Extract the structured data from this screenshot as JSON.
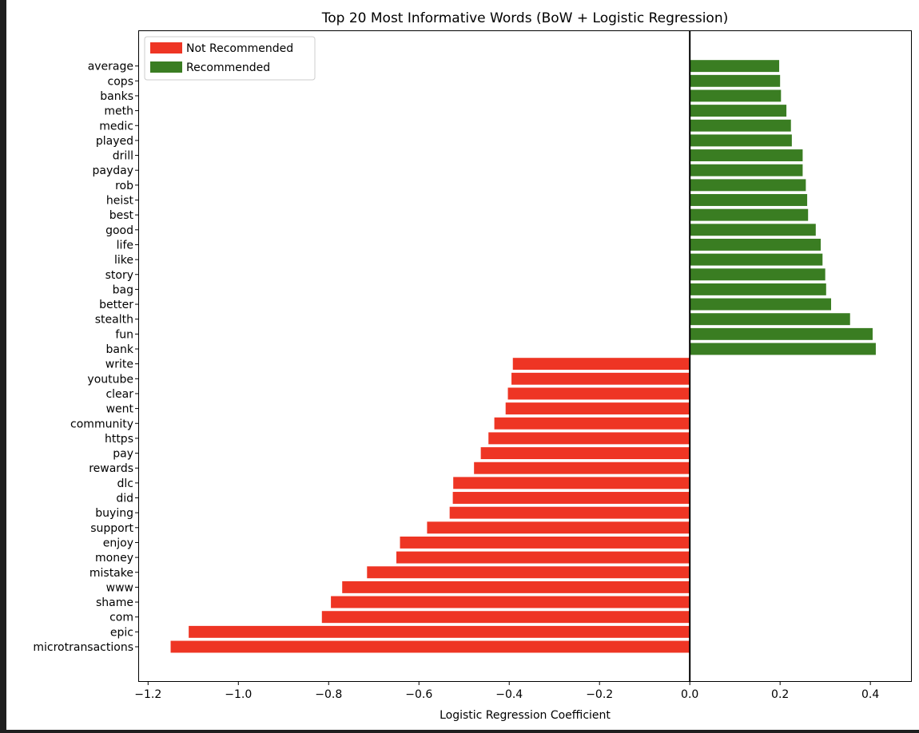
{
  "chart_data": {
    "type": "bar",
    "orientation": "horizontal",
    "title": "Top 20 Most Informative Words (BoW + Logistic Regression)",
    "xlabel": "Logistic Regression Coefficient",
    "ylabel": "",
    "xlim": [
      -1.22,
      0.49
    ],
    "xticks": [
      -1.2,
      -1.0,
      -0.8,
      -0.6,
      -0.4,
      -0.2,
      0.0,
      0.2,
      0.4
    ],
    "xtick_labels": [
      "−1.2",
      "−1.0",
      "−0.8",
      "−0.6",
      "−0.4",
      "−0.2",
      "0.0",
      "0.2",
      "0.4"
    ],
    "legend_position": "top-left",
    "series": [
      {
        "name": "Not Recommended",
        "color": "#ee3524",
        "words": [
          "microtransactions",
          "epic",
          "com",
          "shame",
          "www",
          "mistake",
          "money",
          "enjoy",
          "support",
          "buying",
          "did",
          "dlc",
          "rewards",
          "pay",
          "https",
          "community",
          "went",
          "clear",
          "youtube",
          "write"
        ],
        "values": [
          -1.15,
          -1.11,
          -0.815,
          -0.795,
          -0.77,
          -0.715,
          -0.65,
          -0.642,
          -0.582,
          -0.532,
          -0.525,
          -0.524,
          -0.478,
          -0.463,
          -0.446,
          -0.433,
          -0.408,
          -0.403,
          -0.395,
          -0.392
        ]
      },
      {
        "name": "Recommended",
        "color": "#3a7d22",
        "words": [
          "bank",
          "fun",
          "stealth",
          "better",
          "bag",
          "story",
          "like",
          "life",
          "good",
          "best",
          "heist",
          "rob",
          "payday",
          "drill",
          "played",
          "medic",
          "meth",
          "banks",
          "cops",
          "average"
        ],
        "values": [
          0.412,
          0.405,
          0.355,
          0.313,
          0.302,
          0.3,
          0.294,
          0.29,
          0.279,
          0.262,
          0.26,
          0.257,
          0.25,
          0.25,
          0.226,
          0.224,
          0.214,
          0.202,
          0.2,
          0.198
        ]
      }
    ]
  }
}
